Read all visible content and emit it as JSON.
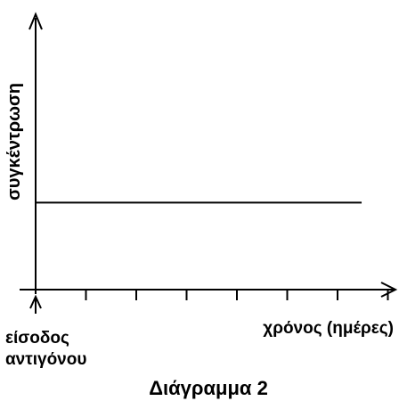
{
  "chart_data": {
    "type": "line",
    "title": "Διάγραμμα 2",
    "xlabel": "χρόνος (ημέρες)",
    "ylabel": "συγκέντρωση",
    "x_origin_label_lines": [
      "είσοδος",
      "αντιγόνου"
    ],
    "x_tick_count": 7,
    "y_tick_count": 0,
    "grid": false,
    "series": [
      {
        "points": [
          {
            "x": 0,
            "y": 0.32
          },
          {
            "x": 1,
            "y": 0.32
          }
        ]
      }
    ],
    "xlim": [
      0,
      1.06
    ],
    "ylim": [
      0,
      1
    ]
  }
}
